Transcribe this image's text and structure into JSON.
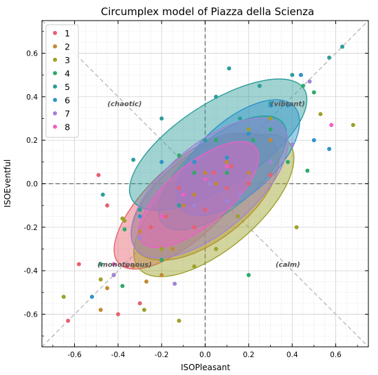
{
  "chart_data": {
    "type": "scatter",
    "title": "Circumplex model of Piazza della Scienza",
    "xlabel": "ISOPleasant",
    "ylabel": "ISOEventful",
    "xlim": [
      -0.75,
      0.75
    ],
    "ylim": [
      -0.75,
      0.75
    ],
    "xticks": [
      "-0.6",
      "-0.4",
      "-0.2",
      "0.0",
      "0.2",
      "0.4",
      "0.6"
    ],
    "yticks": [
      "-0.6",
      "-0.4",
      "-0.2",
      "0.0",
      "0.2",
      "0.4",
      "0.6"
    ],
    "tick_values": [
      -0.6,
      -0.4,
      -0.2,
      0.0,
      0.2,
      0.4,
      0.6
    ],
    "grid": true,
    "legend_position": "top-left",
    "quadrant_labels": [
      {
        "text": "(chaotic)",
        "x": -0.37,
        "y": 0.37
      },
      {
        "text": "(vibrant)",
        "x": 0.38,
        "y": 0.37
      },
      {
        "text": "(monotonous)",
        "x": -0.37,
        "y": -0.37
      },
      {
        "text": "(calm)",
        "x": 0.38,
        "y": -0.37
      }
    ],
    "series": [
      {
        "name": "1",
        "color": "#e8606f",
        "points": [
          [
            -0.63,
            -0.63
          ],
          [
            -0.58,
            -0.37
          ],
          [
            -0.49,
            0.04
          ],
          [
            -0.45,
            -0.1
          ],
          [
            -0.42,
            -0.42
          ],
          [
            -0.4,
            -0.6
          ],
          [
            -0.36,
            -0.38
          ],
          [
            -0.3,
            -0.55
          ],
          [
            -0.25,
            -0.2
          ],
          [
            -0.2,
            -0.3
          ],
          [
            -0.18,
            -0.15
          ],
          [
            -0.12,
            -0.02
          ],
          [
            -0.1,
            -0.05
          ],
          [
            -0.05,
            -0.2
          ],
          [
            0.0,
            -0.12
          ],
          [
            0.04,
            0.05
          ],
          [
            0.1,
            -0.02
          ],
          [
            0.12,
            0.08
          ],
          [
            0.2,
            0.0
          ],
          [
            0.3,
            0.04
          ]
        ],
        "ellipse": {
          "cx": -0.09,
          "cy": -0.08,
          "rx": 0.42,
          "ry": 0.17,
          "angle": 43
        }
      },
      {
        "name": "2",
        "color": "#c28a33",
        "points": [
          [
            -0.48,
            -0.58
          ],
          [
            -0.45,
            -0.48
          ],
          [
            -0.42,
            -0.42
          ],
          [
            -0.33,
            -0.38
          ],
          [
            -0.3,
            -0.22
          ],
          [
            -0.27,
            -0.45
          ],
          [
            -0.2,
            -0.42
          ],
          [
            -0.15,
            -0.3
          ],
          [
            -0.1,
            -0.1
          ],
          [
            -0.05,
            -0.05
          ],
          [
            0.0,
            0.05
          ],
          [
            0.05,
            0.0
          ],
          [
            0.1,
            0.1
          ],
          [
            0.2,
            0.05
          ],
          [
            0.3,
            0.2
          ]
        ],
        "ellipse": {
          "cx": 0.0,
          "cy": -0.06,
          "rx": 0.4,
          "ry": 0.2,
          "angle": 38
        }
      },
      {
        "name": "3",
        "color": "#9da12a",
        "points": [
          [
            -0.65,
            -0.52
          ],
          [
            -0.48,
            -0.44
          ],
          [
            -0.38,
            -0.16
          ],
          [
            -0.37,
            -0.17
          ],
          [
            -0.28,
            -0.58
          ],
          [
            -0.2,
            -0.3
          ],
          [
            -0.12,
            -0.63
          ],
          [
            -0.05,
            -0.38
          ],
          [
            0.05,
            -0.3
          ],
          [
            0.15,
            -0.15
          ],
          [
            0.2,
            0.25
          ],
          [
            0.3,
            0.3
          ],
          [
            0.42,
            -0.2
          ],
          [
            0.53,
            0.32
          ],
          [
            0.68,
            0.27
          ]
        ],
        "ellipse": {
          "cx": 0.04,
          "cy": -0.1,
          "rx": 0.45,
          "ry": 0.2,
          "angle": 40
        }
      },
      {
        "name": "4",
        "color": "#2eaa6a",
        "points": [
          [
            -0.48,
            -0.37
          ],
          [
            -0.38,
            -0.47
          ],
          [
            -0.37,
            -0.21
          ],
          [
            -0.2,
            -0.35
          ],
          [
            -0.12,
            0.13
          ],
          [
            -0.05,
            0.05
          ],
          [
            0.05,
            0.2
          ],
          [
            0.1,
            0.05
          ],
          [
            0.2,
            -0.42
          ],
          [
            0.22,
            0.2
          ],
          [
            0.3,
            0.25
          ],
          [
            0.38,
            0.1
          ],
          [
            0.45,
            0.45
          ],
          [
            0.47,
            0.06
          ],
          [
            0.5,
            0.42
          ]
        ],
        "ellipse": {
          "cx": 0.08,
          "cy": 0.05,
          "rx": 0.36,
          "ry": 0.16,
          "angle": 40
        }
      },
      {
        "name": "5",
        "color": "#2c9d9a",
        "points": [
          [
            -0.47,
            -0.05
          ],
          [
            -0.33,
            0.11
          ],
          [
            -0.3,
            -0.12
          ],
          [
            -0.2,
            0.3
          ],
          [
            -0.12,
            -0.1
          ],
          [
            -0.05,
            0.1
          ],
          [
            0.0,
            0.2
          ],
          [
            0.05,
            0.4
          ],
          [
            0.11,
            0.53
          ],
          [
            0.16,
            0.3
          ],
          [
            0.25,
            0.45
          ],
          [
            0.3,
            0.37
          ],
          [
            0.4,
            0.5
          ],
          [
            0.57,
            0.58
          ],
          [
            0.63,
            0.63
          ]
        ],
        "ellipse": {
          "cx": 0.06,
          "cy": 0.18,
          "rx": 0.47,
          "ry": 0.19,
          "angle": 33
        }
      },
      {
        "name": "6",
        "color": "#2f93c9",
        "points": [
          [
            -0.52,
            -0.52
          ],
          [
            -0.3,
            -0.15
          ],
          [
            -0.2,
            0.1
          ],
          [
            -0.05,
            0.1
          ],
          [
            0.0,
            0.02
          ],
          [
            0.1,
            0.12
          ],
          [
            0.2,
            0.23
          ],
          [
            0.3,
            0.36
          ],
          [
            0.38,
            0.36
          ],
          [
            0.44,
            0.5
          ],
          [
            0.5,
            0.2
          ],
          [
            0.57,
            0.16
          ]
        ],
        "ellipse": {
          "cx": 0.15,
          "cy": 0.12,
          "rx": 0.35,
          "ry": 0.17,
          "angle": 42
        }
      },
      {
        "name": "7",
        "color": "#a084d8",
        "points": [
          [
            -0.42,
            -0.42
          ],
          [
            -0.3,
            -0.25
          ],
          [
            -0.14,
            -0.46
          ],
          [
            -0.05,
            -0.1
          ],
          [
            0.02,
            0.0
          ],
          [
            0.1,
            -0.08
          ],
          [
            0.16,
            -0.05
          ],
          [
            0.3,
            0.1
          ],
          [
            0.4,
            0.18
          ],
          [
            0.48,
            0.47
          ]
        ],
        "ellipse": {
          "cx": 0.02,
          "cy": -0.02,
          "rx": 0.44,
          "ry": 0.2,
          "angle": 40
        }
      },
      {
        "name": "8",
        "color": "#ee60c6",
        "points": [
          [
            -0.42,
            -0.37
          ],
          [
            -0.2,
            -0.15
          ],
          [
            -0.1,
            -0.05
          ],
          [
            0.0,
            0.02
          ],
          [
            0.1,
            0.08
          ],
          [
            0.58,
            0.27
          ]
        ],
        "ellipse": {
          "cx": -0.03,
          "cy": -0.05,
          "rx": 0.34,
          "ry": 0.14,
          "angle": 40
        }
      }
    ]
  }
}
